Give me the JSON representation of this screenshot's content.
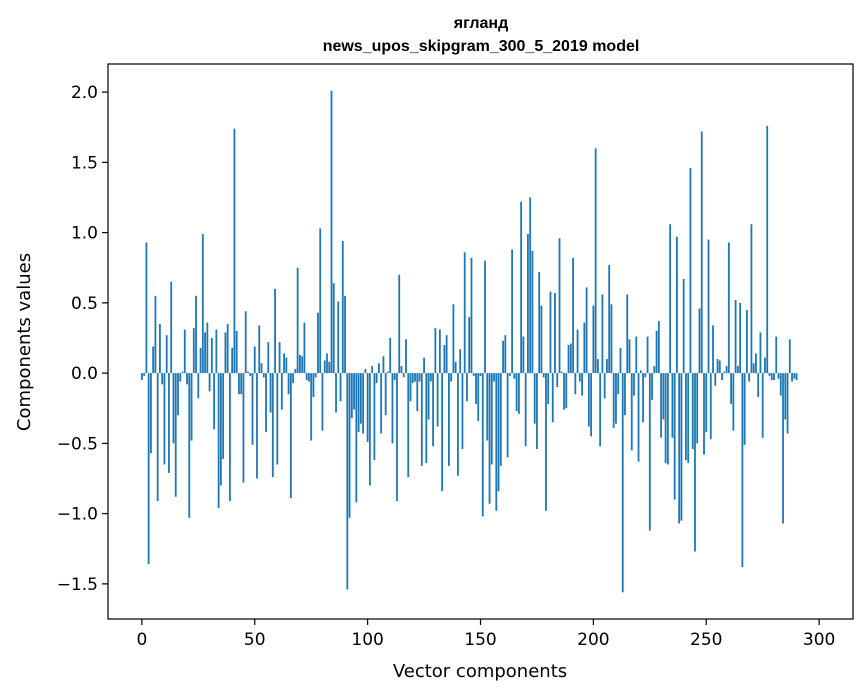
{
  "chart_data": {
    "type": "bar",
    "title_line1": "ягланд",
    "title_line2": "news_upos_skipgram_300_5_2019 model",
    "xlabel": "Vector components",
    "ylabel": "Components values",
    "xlim": [
      -15,
      315
    ],
    "ylim": [
      -1.75,
      2.2
    ],
    "xticks": [
      0,
      50,
      100,
      150,
      200,
      250,
      300
    ],
    "yticks": [
      -1.5,
      -1.0,
      -0.5,
      0.0,
      0.5,
      1.0,
      1.5,
      2.0
    ],
    "ytick_labels": [
      "−1.5",
      "−1.0",
      "−0.5",
      "0.0",
      "0.5",
      "1.0",
      "1.5",
      "2.0"
    ],
    "bar_color": "#1f77b4",
    "values": [
      -0.05,
      -0.02,
      0.93,
      -1.36,
      -0.57,
      0.19,
      0.55,
      -0.91,
      0.35,
      -0.08,
      -0.65,
      0.27,
      -0.71,
      0.65,
      -0.5,
      -0.88,
      -0.3,
      -0.06,
      0.01,
      0.31,
      -0.08,
      -1.03,
      -0.48,
      0.32,
      0.55,
      -0.18,
      0.18,
      0.99,
      0.29,
      0.36,
      -0.13,
      0.25,
      -0.4,
      0.31,
      -0.96,
      -0.8,
      -0.61,
      0.29,
      0.35,
      -0.91,
      0.18,
      1.74,
      0.3,
      -0.15,
      -0.15,
      -0.78,
      0.44,
      0.01,
      -0.02,
      -0.51,
      0.19,
      -0.75,
      0.34,
      0.07,
      -0.03,
      -0.42,
      0.22,
      -0.28,
      -0.74,
      0.6,
      -0.65,
      0.22,
      -0.26,
      0.14,
      0.11,
      -0.15,
      -0.89,
      -0.07,
      0.03,
      0.75,
      0.13,
      0.12,
      0.36,
      -0.05,
      -0.06,
      -0.48,
      -0.17,
      -0.03,
      0.43,
      1.03,
      -0.41,
      0.09,
      0.14,
      0.08,
      2.01,
      0.64,
      -0.28,
      0.51,
      -0.2,
      0.94,
      0.55,
      -1.54,
      -1.03,
      -0.32,
      -0.26,
      -0.92,
      -0.42,
      -0.36,
      -0.43,
      0.03,
      -0.49,
      -0.8,
      0.05,
      -0.62,
      -0.07,
      0.07,
      -0.43,
      0.12,
      -0.3,
      0.01,
      0.25,
      -0.5,
      -0.05,
      -0.91,
      0.7,
      0.05,
      -0.03,
      0.24,
      -0.74,
      -0.2,
      -0.07,
      -0.06,
      -0.27,
      -0.06,
      -0.66,
      0.11,
      -0.64,
      -0.33,
      -0.06,
      -0.52,
      0.32,
      -0.38,
      0.31,
      -0.84,
      0.2,
      0.27,
      -0.66,
      -0.06,
      0.49,
      0.08,
      -0.73,
      0.17,
      -0.54,
      0.86,
      -0.2,
      0.4,
      0.82,
      -0.02,
      -0.22,
      -0.34,
      -0.02,
      -1.02,
      0.8,
      -0.48,
      -0.93,
      -0.65,
      -0.06,
      -0.98,
      -0.84,
      -0.66,
      0.23,
      0.27,
      -0.6,
      -0.02,
      0.88,
      -0.04,
      -0.27,
      -0.29,
      1.22,
      0.26,
      -0.52,
      0.99,
      1.25,
      0.87,
      -0.36,
      -0.54,
      0.72,
      0.48,
      -0.03,
      -0.98,
      -0.22,
      0.58,
      -0.35,
      0.57,
      -0.1,
      0.96,
      0.01,
      -0.26,
      -0.25,
      0.2,
      0.21,
      0.82,
      -0.15,
      0.31,
      -0.06,
      -0.16,
      0.36,
      0.61,
      -0.38,
      -0.45,
      0.48,
      1.6,
      0.1,
      -0.52,
      0.56,
      -0.18,
      0.1,
      0.77,
      0.49,
      -0.39,
      -0.36,
      -0.15,
      0.18,
      -1.56,
      -0.3,
      0.56,
      0.24,
      -0.55,
      -0.16,
      0.26,
      -0.63,
      0.02,
      -0.35,
      -0.03,
      0.26,
      -1.12,
      -0.19,
      0.05,
      0.3,
      0.37,
      -0.46,
      -0.33,
      -0.64,
      -0.65,
      1.06,
      -0.46,
      -0.9,
      0.97,
      -1.07,
      -1.05,
      0.67,
      -0.62,
      -0.64,
      1.46,
      -0.54,
      -1.27,
      -0.5,
      0.46,
      1.72,
      -0.58,
      -0.42,
      0.95,
      -0.47,
      0.34,
      -0.09,
      0.1,
      0.09,
      -0.05,
      0.01,
      0.05,
      0.93,
      -0.22,
      -0.41,
      0.52,
      0.05,
      0.5,
      -1.38,
      -0.51,
      0.45,
      -0.06,
      1.06,
      0.07,
      0.14,
      -0.17,
      0.29,
      -0.46,
      0.11,
      1.76,
      -0.02,
      -0.05,
      -0.05,
      0.26,
      -0.04,
      -0.16,
      -1.07,
      -0.33,
      -0.43,
      0.24,
      -0.06,
      -0.04,
      -0.05
    ]
  }
}
